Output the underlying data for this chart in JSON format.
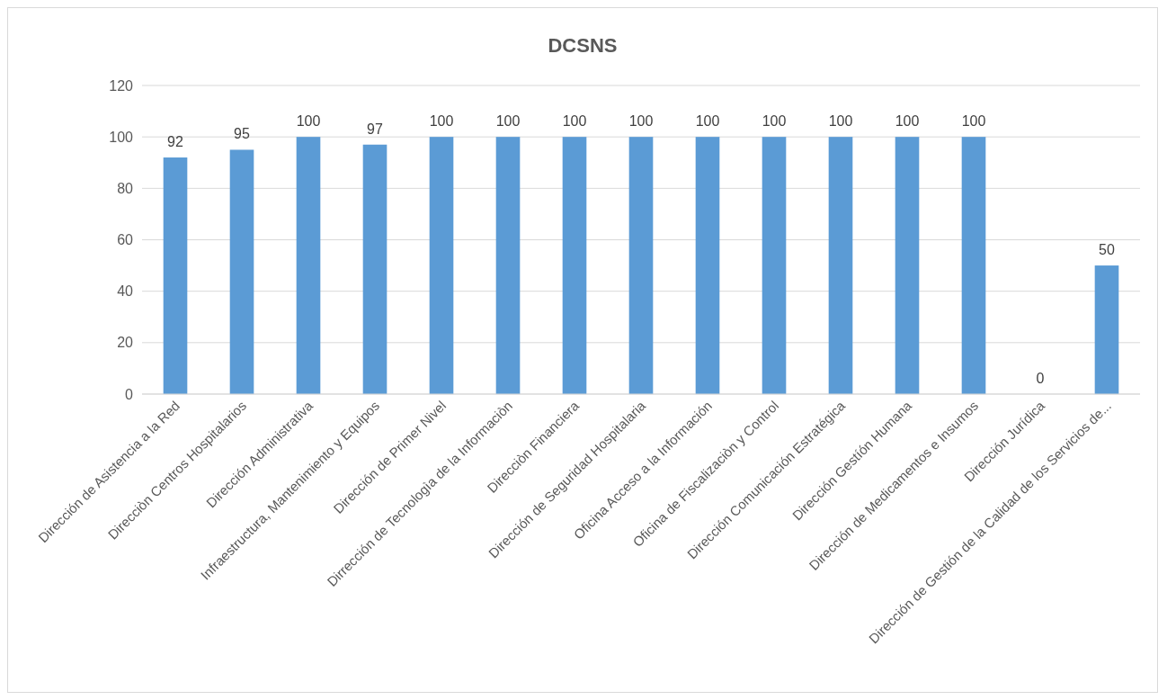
{
  "chart_data": {
    "type": "bar",
    "title": "DCSNS",
    "categories": [
      "Dirección de Asistencia a la Red",
      "Direcciòn  Centros Hospitalarios",
      "Dirección Administrativa",
      "Infraestructura, Mantenimiento y Equipos",
      "Dirección de Primer Nivel",
      "Dirrección de Tecnologìa de la Informaciòn",
      "Direcciòn Financiera",
      "Dirección de Seguridad Hospitalaria",
      "Oficina Acceso a la Información",
      "Oficina de Fiscalizaciòn y Control",
      "Dirección Comunicación Estratégica",
      "Dirección Gestíón Humana",
      "Dirección de Medicamentos e Insumos",
      "Dirección Jurídica",
      "Dirección de Gestión de la Calidad de los Servicios de..."
    ],
    "values": [
      92,
      95,
      100,
      97,
      100,
      100,
      100,
      100,
      100,
      100,
      100,
      100,
      100,
      0,
      50
    ],
    "value_labels": [
      "92",
      "95",
      "100",
      "97",
      "100",
      "100",
      "100",
      "100",
      "100",
      "100",
      "100",
      "100",
      "100",
      "0",
      "50"
    ],
    "color": "#5b9bd5",
    "ylim": [
      0,
      120
    ],
    "yticks": [
      0,
      20,
      40,
      60,
      80,
      100,
      120
    ],
    "grid": "y"
  }
}
